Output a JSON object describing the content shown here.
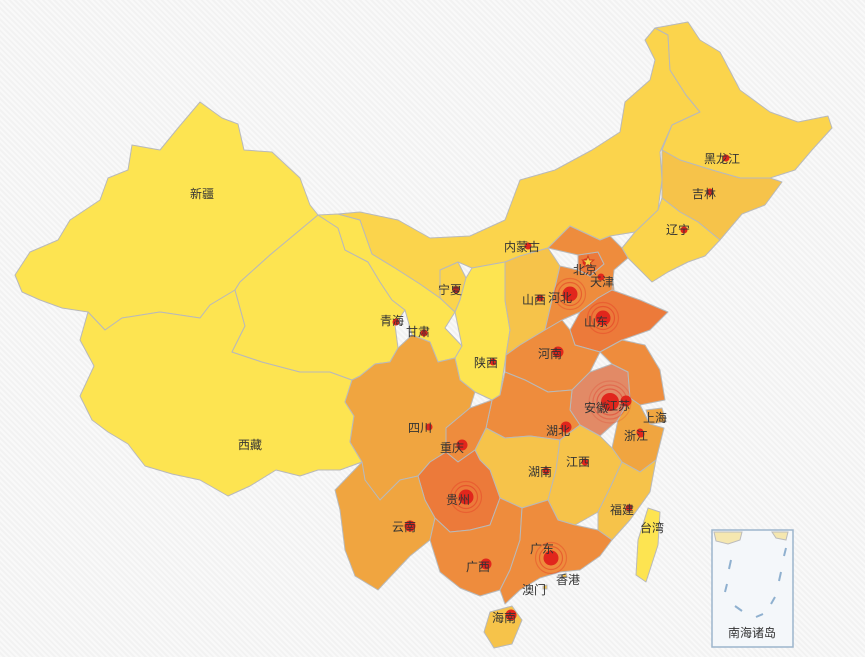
{
  "colors": {
    "yellow": "#fde451",
    "light": "#fbd44c",
    "mid": "#f6c34a",
    "orange": "#f0a540",
    "deep": "#ee8c3d",
    "darkest": "#ec7a3a",
    "mauve": "#e28a66",
    "dot": "#e1261c",
    "ring": "#e1261c"
  },
  "inset_title": "南海诸岛",
  "provinces": [
    {
      "name": "新疆",
      "level": "yellow"
    },
    {
      "name": "西藏",
      "level": "yellow"
    },
    {
      "name": "青海",
      "level": "yellow"
    },
    {
      "name": "甘肃",
      "level": "yellow"
    },
    {
      "name": "宁夏",
      "level": "light"
    },
    {
      "name": "内蒙古",
      "level": "light"
    },
    {
      "name": "陕西",
      "level": "yellow"
    },
    {
      "name": "山西",
      "level": "mid"
    },
    {
      "name": "黑龙江",
      "level": "light"
    },
    {
      "name": "吉林",
      "level": "mid"
    },
    {
      "name": "辽宁",
      "level": "light"
    },
    {
      "name": "北京",
      "level": "darkest"
    },
    {
      "name": "天津",
      "level": "deep"
    },
    {
      "name": "河北",
      "level": "deep"
    },
    {
      "name": "山东",
      "level": "darkest"
    },
    {
      "name": "河南",
      "level": "deep"
    },
    {
      "name": "安徽",
      "level": "mauve"
    },
    {
      "name": "江苏",
      "level": "deep"
    },
    {
      "name": "上海",
      "level": "orange"
    },
    {
      "name": "浙江",
      "level": "orange"
    },
    {
      "name": "湖北",
      "level": "deep"
    },
    {
      "name": "湖南",
      "level": "mid"
    },
    {
      "name": "江西",
      "level": "mid"
    },
    {
      "name": "福建",
      "level": "mid"
    },
    {
      "name": "台湾",
      "level": "yellow"
    },
    {
      "name": "四川",
      "level": "orange"
    },
    {
      "name": "重庆",
      "level": "deep"
    },
    {
      "name": "贵州",
      "level": "darkest"
    },
    {
      "name": "云南",
      "level": "orange"
    },
    {
      "name": "广西",
      "level": "deep"
    },
    {
      "name": "广东",
      "level": "deep"
    },
    {
      "name": "海南",
      "level": "mid"
    },
    {
      "name": "香港",
      "level": ""
    },
    {
      "name": "澳门",
      "level": ""
    }
  ],
  "markers": [
    {
      "name": "安徽",
      "size": "large"
    },
    {
      "name": "山东",
      "size": "medium"
    },
    {
      "name": "河北",
      "size": "medium"
    },
    {
      "name": "贵州",
      "size": "medium"
    },
    {
      "name": "广东",
      "size": "medium"
    },
    {
      "name": "江苏",
      "size": "small"
    },
    {
      "name": "重庆",
      "size": "small"
    },
    {
      "name": "湖北",
      "size": "small"
    },
    {
      "name": "广西",
      "size": "small"
    },
    {
      "name": "河南",
      "size": "small"
    },
    {
      "name": "云南",
      "size": "small"
    },
    {
      "name": "海南",
      "size": "small"
    },
    {
      "name": "上海",
      "size": "tiny"
    },
    {
      "name": "浙江",
      "size": "tiny"
    },
    {
      "name": "四川",
      "size": "tiny"
    },
    {
      "name": "湖南",
      "size": "tiny"
    },
    {
      "name": "江西",
      "size": "tiny"
    },
    {
      "name": "福建",
      "size": "tiny"
    },
    {
      "name": "山西",
      "size": "tiny"
    },
    {
      "name": "陕西",
      "size": "tiny"
    },
    {
      "name": "甘肃",
      "size": "tiny"
    },
    {
      "name": "宁夏",
      "size": "tiny"
    },
    {
      "name": "青海",
      "size": "tiny"
    },
    {
      "name": "内蒙古",
      "size": "tiny"
    },
    {
      "name": "辽宁",
      "size": "tiny"
    },
    {
      "name": "吉林",
      "size": "tiny"
    },
    {
      "name": "黑龙江",
      "size": "tiny"
    },
    {
      "name": "北京",
      "size": "tiny"
    },
    {
      "name": "天津",
      "size": "tiny"
    }
  ],
  "capital_icon": "star-icon"
}
